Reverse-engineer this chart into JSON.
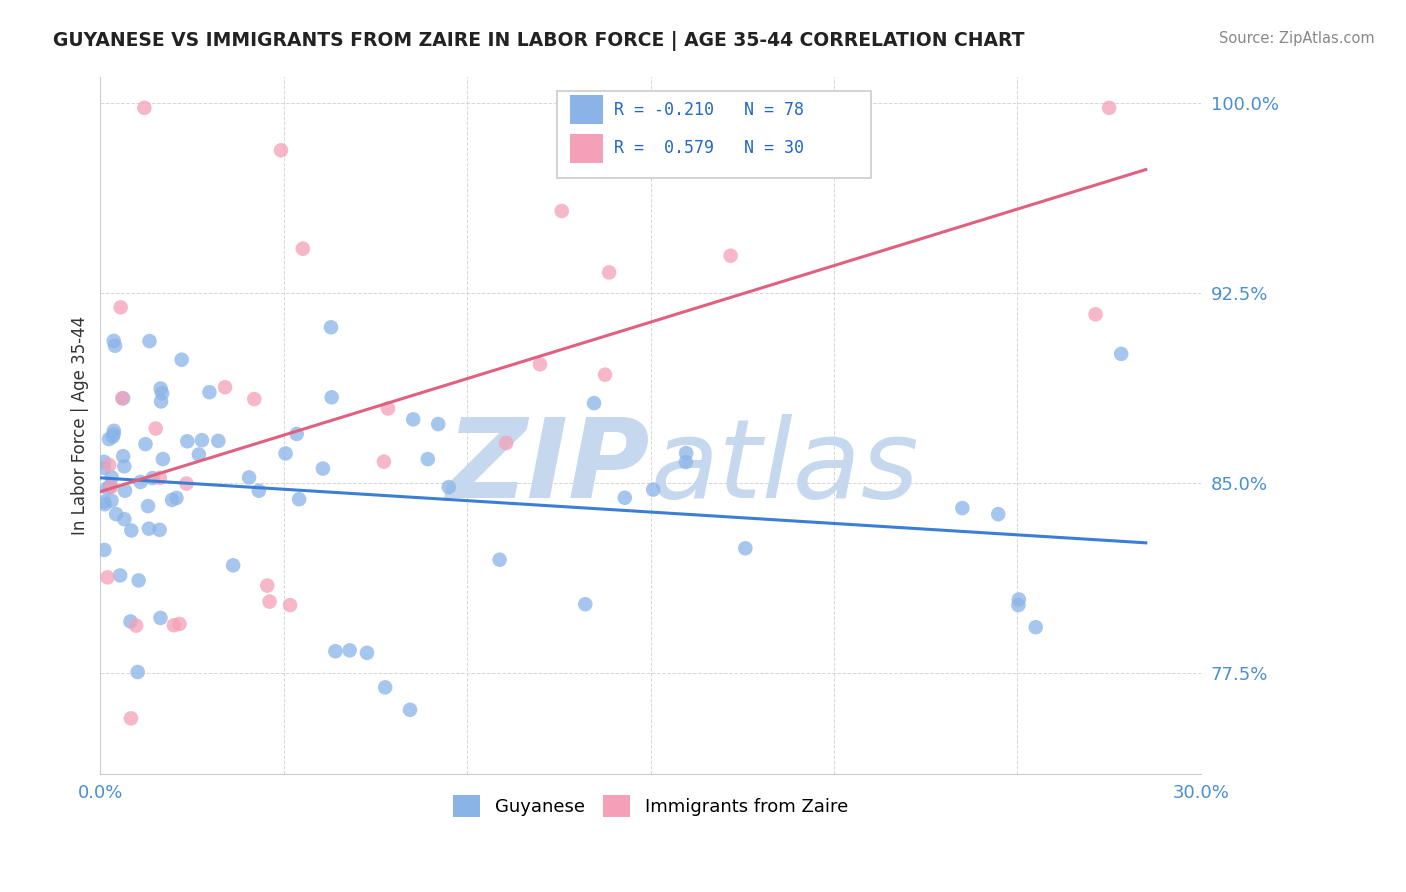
{
  "title": "GUYANESE VS IMMIGRANTS FROM ZAIRE IN LABOR FORCE | AGE 35-44 CORRELATION CHART",
  "source": "Source: ZipAtlas.com",
  "ylabel": "In Labor Force | Age 35-44",
  "xlim": [
    0.0,
    0.3
  ],
  "ylim": [
    0.735,
    1.01
  ],
  "yticks": [
    0.775,
    0.85,
    0.925,
    1.0
  ],
  "ytick_labels": [
    "77.5%",
    "85.0%",
    "92.5%",
    "100.0%"
  ],
  "R_guyanese": -0.21,
  "N_guyanese": 78,
  "R_zaire": 0.579,
  "N_zaire": 30,
  "color_guyanese": "#8ab4e8",
  "color_zaire": "#f4a0b8",
  "line_color_guyanese": "#3a7fd5",
  "line_color_zaire": "#e06080",
  "watermark_color": "#c5d8ed"
}
